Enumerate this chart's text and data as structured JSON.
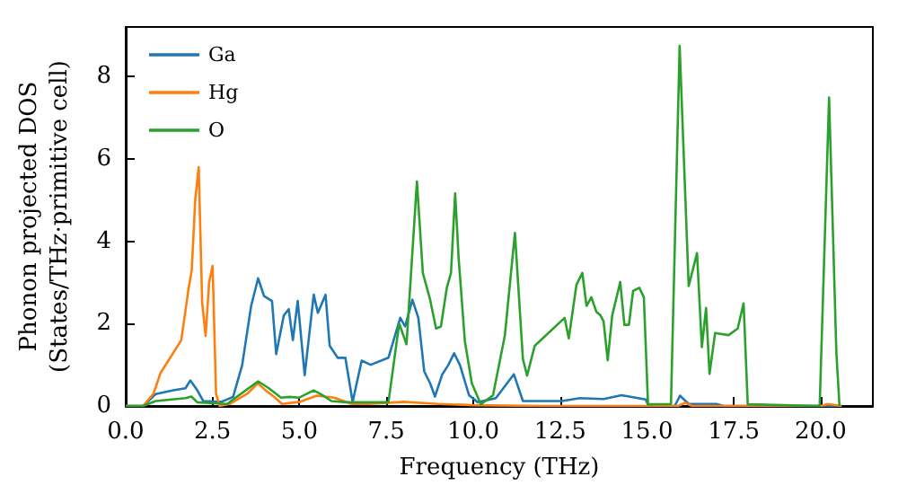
{
  "chart_data": {
    "type": "line",
    "xlabel": "Frequency (THz)",
    "ylabel": "Phonon projected DOS\n(States/THz·primitive cell)",
    "xlim": [
      0,
      21.5
    ],
    "ylim": [
      0,
      9.2
    ],
    "xticks": [
      {
        "value": 0,
        "label": "0.0"
      },
      {
        "value": 2.5,
        "label": "2.5"
      },
      {
        "value": 5,
        "label": "5.0"
      },
      {
        "value": 7.5,
        "label": "7.5"
      },
      {
        "value": 10,
        "label": "10.0"
      },
      {
        "value": 12.5,
        "label": "12.5"
      },
      {
        "value": 15,
        "label": "15.0"
      },
      {
        "value": 17.5,
        "label": "17.5"
      },
      {
        "value": 20,
        "label": "20.0"
      }
    ],
    "yticks": [
      0,
      2,
      4,
      6,
      8
    ],
    "grid": false,
    "legend": "top left",
    "marker": "none",
    "line_style": "solid",
    "series": [
      {
        "name": "Ga",
        "color": "#1f77b4",
        "x": [
          0,
          0.5,
          0.86,
          1.37,
          1.72,
          1.86,
          2.06,
          2.23,
          2.75,
          3.09,
          3.35,
          3.61,
          3.81,
          3.98,
          4.21,
          4.33,
          4.55,
          4.69,
          4.81,
          4.95,
          5.15,
          5.41,
          5.53,
          5.75,
          5.87,
          6.1,
          6.32,
          6.53,
          6.79,
          7.05,
          7.56,
          7.9,
          8.04,
          8.25,
          8.42,
          8.59,
          8.76,
          8.9,
          9.11,
          9.28,
          9.45,
          9.62,
          9.88,
          10.13,
          10.65,
          11.17,
          11.43,
          12.55,
          13.07,
          13.75,
          14.27,
          14.96,
          15.05,
          15.8,
          15.95,
          16.2,
          17.0,
          17.2,
          20.6
        ],
        "values": [
          0,
          0,
          0.29,
          0.38,
          0.43,
          0.62,
          0.38,
          0.12,
          0.1,
          0.22,
          0.99,
          2.43,
          3.1,
          2.67,
          2.55,
          1.26,
          2.2,
          2.35,
          1.6,
          2.55,
          0.75,
          2.7,
          2.26,
          2.7,
          1.46,
          1.17,
          1.17,
          0.1,
          1.1,
          1.0,
          1.17,
          2.14,
          1.93,
          2.58,
          2.14,
          0.84,
          0.55,
          0.23,
          0.77,
          0.99,
          1.28,
          0.99,
          0.26,
          0.09,
          0.19,
          0.77,
          0.12,
          0.12,
          0.19,
          0.17,
          0.26,
          0.16,
          0,
          0,
          0.25,
          0.05,
          0.05,
          0,
          0
        ]
      },
      {
        "name": "Hg",
        "color": "#ff7f0e",
        "x": [
          0,
          0.5,
          0.8,
          1.0,
          1.3,
          1.6,
          1.8,
          1.9,
          2.0,
          2.1,
          2.2,
          2.3,
          2.4,
          2.5,
          2.6,
          2.7,
          3.0,
          3.5,
          3.8,
          4.0,
          4.3,
          4.5,
          5.0,
          5.5,
          6.0,
          6.5,
          7.0,
          8.0,
          9.0,
          10.0,
          12.0,
          15.9,
          16.1,
          16.3,
          20.0,
          20.2,
          20.6
        ],
        "values": [
          0,
          0,
          0.3,
          0.8,
          1.2,
          1.6,
          2.8,
          3.3,
          5.0,
          5.8,
          2.5,
          1.7,
          3.0,
          3.4,
          0.3,
          0,
          0.05,
          0.3,
          0.55,
          0.4,
          0.2,
          0.05,
          0.1,
          0.25,
          0.2,
          0.05,
          0.05,
          0.1,
          0.05,
          0.02,
          0,
          0,
          0.08,
          0,
          0,
          0.05,
          0
        ]
      },
      {
        "name": "O",
        "color": "#2ca02c",
        "x": [
          0,
          0.5,
          0.86,
          1.72,
          1.89,
          2.06,
          2.92,
          3.81,
          4.12,
          4.47,
          4.72,
          4.98,
          5.41,
          5.67,
          5.92,
          6.36,
          7.56,
          7.87,
          8.08,
          8.38,
          8.55,
          8.76,
          8.93,
          9.07,
          9.24,
          9.36,
          9.48,
          9.58,
          9.76,
          9.96,
          10.22,
          10.57,
          10.91,
          11.2,
          11.43,
          11.55,
          11.77,
          12.63,
          12.75,
          12.97,
          13.14,
          13.26,
          13.4,
          13.54,
          13.66,
          13.75,
          13.87,
          14.0,
          14.23,
          14.35,
          14.48,
          14.6,
          14.78,
          14.91,
          15.03,
          15.69,
          15.94,
          16.2,
          16.44,
          16.58,
          16.7,
          16.8,
          16.96,
          17.35,
          17.61,
          17.78,
          17.9,
          19.97,
          20.24,
          20.45,
          20.54
        ],
        "values": [
          0,
          0,
          0.12,
          0.19,
          0.23,
          0.09,
          0.05,
          0.6,
          0.43,
          0.2,
          0.22,
          0.2,
          0.38,
          0.26,
          0.12,
          0.09,
          0.09,
          2.0,
          1.5,
          5.45,
          3.23,
          2.58,
          1.88,
          1.93,
          2.87,
          3.23,
          5.16,
          3.59,
          1.57,
          0.55,
          0.04,
          0.26,
          1.71,
          4.2,
          1.14,
          0.74,
          1.46,
          2.14,
          1.64,
          2.94,
          3.23,
          2.43,
          2.64,
          2.29,
          2.2,
          2.06,
          1.11,
          2.2,
          3.01,
          1.97,
          1.97,
          2.79,
          2.87,
          2.64,
          0.04,
          0.05,
          8.74,
          2.91,
          3.71,
          1.43,
          2.38,
          0.78,
          1.77,
          1.72,
          1.88,
          2.49,
          0.04,
          0,
          7.49,
          1.3,
          0
        ]
      }
    ]
  }
}
